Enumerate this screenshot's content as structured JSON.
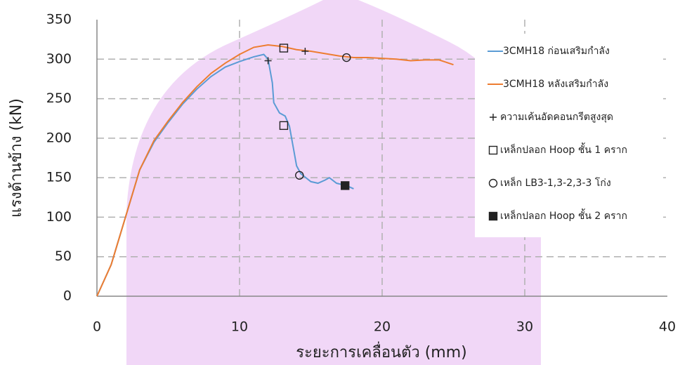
{
  "chart_data": {
    "type": "line",
    "x_label": "ระยะการเคลื่อนตัว (mm)",
    "y_label": "แรงด้านข้าง (kN)",
    "xlim": [
      0,
      40
    ],
    "xticks": [
      0,
      10,
      20,
      30,
      40
    ],
    "ylim": [
      0,
      350
    ],
    "yticks": [
      0,
      50,
      100,
      150,
      200,
      250,
      300,
      350
    ],
    "grid": true,
    "legend": "right",
    "series": [
      {
        "name": "3CMH18 ก่อนเสริมกำลัง",
        "color": "#5b9bd5",
        "x": [
          0,
          1,
          2,
          3,
          4,
          5,
          6,
          7,
          8,
          9,
          10,
          11,
          11.7,
          12,
          12.1,
          12.3,
          12.4,
          12.8,
          13.2,
          13.5,
          13.8,
          14,
          14.3,
          15,
          15.5,
          16,
          16.3,
          16.8,
          17.5,
          18
        ],
        "values": [
          0,
          40,
          100,
          160,
          195,
          220,
          243,
          262,
          278,
          290,
          297,
          303,
          306,
          300,
          290,
          270,
          245,
          232,
          228,
          215,
          185,
          165,
          155,
          145,
          143,
          147,
          150,
          143,
          140,
          136
        ]
      },
      {
        "name": "3CMH18 หลังเสริมกำลัง",
        "color": "#ed7d31",
        "x": [
          0,
          1,
          2,
          3,
          4,
          5,
          6,
          7,
          8,
          9,
          10,
          11,
          12,
          13,
          14,
          15,
          16,
          17,
          18,
          19,
          20,
          21,
          22,
          23,
          24,
          25
        ],
        "values": [
          0,
          40,
          100,
          160,
          197,
          222,
          245,
          265,
          282,
          295,
          306,
          315,
          318,
          316,
          312,
          310,
          307,
          304,
          302,
          302,
          301,
          300,
          298,
          299,
          299,
          293
        ]
      },
      {
        "name": "ความเค้นอัดคอนกรีตสูงสุด",
        "color": "#222222",
        "marker": "plus",
        "x": [
          12,
          14.6
        ],
        "values": [
          298,
          310
        ]
      },
      {
        "name": "เหล็กปลอก Hoop ชั้น 1 คราก",
        "color": "#222222",
        "marker": "square",
        "x": [
          13.1,
          13.1
        ],
        "values": [
          314,
          216
        ]
      },
      {
        "name": "เหล็ก LB3-1,3-2,3-3 โก่ง",
        "color": "#222222",
        "marker": "circle",
        "x": [
          17.5,
          14.2
        ],
        "values": [
          302,
          153
        ]
      },
      {
        "name": "เหล็กปลอก Hoop ชั้น 2 คราก",
        "color": "#222222",
        "marker": "filled-square",
        "x": [
          17.4
        ],
        "values": [
          140
        ]
      }
    ]
  }
}
